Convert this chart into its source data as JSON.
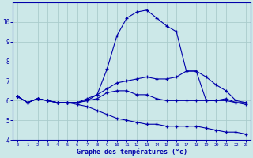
{
  "xlabel": "Graphe des températures (°c)",
  "background_color": "#cce8e8",
  "grid_color": "#aacccc",
  "line_color": "#0000aa",
  "hours": [
    0,
    1,
    2,
    3,
    4,
    5,
    6,
    7,
    8,
    9,
    10,
    11,
    12,
    13,
    14,
    15,
    16,
    17,
    18,
    19,
    20,
    21,
    22,
    23
  ],
  "temp": [
    6.2,
    5.9,
    6.1,
    6.0,
    5.9,
    5.9,
    5.9,
    6.0,
    6.3,
    7.6,
    9.3,
    10.2,
    10.5,
    10.6,
    10.2,
    9.8,
    9.5,
    7.5,
    7.5,
    6.0,
    6.0,
    6.1,
    5.9,
    5.8
  ],
  "dewpoint": [
    6.2,
    5.9,
    6.1,
    6.0,
    5.9,
    5.9,
    5.9,
    6.1,
    6.3,
    6.6,
    6.9,
    7.0,
    7.1,
    7.2,
    7.1,
    7.1,
    7.2,
    7.5,
    7.5,
    7.2,
    6.8,
    6.5,
    6.0,
    5.9
  ],
  "windchill": [
    6.2,
    5.9,
    6.1,
    6.0,
    5.9,
    5.9,
    5.9,
    6.0,
    6.1,
    6.4,
    6.5,
    6.5,
    6.3,
    6.3,
    6.1,
    6.0,
    6.0,
    6.0,
    6.0,
    6.0,
    6.0,
    6.0,
    5.9,
    5.9
  ],
  "humidex": [
    6.2,
    5.9,
    6.1,
    6.0,
    5.9,
    5.9,
    5.8,
    5.7,
    5.5,
    5.3,
    5.1,
    5.0,
    4.9,
    4.8,
    4.8,
    4.7,
    4.7,
    4.7,
    4.7,
    4.6,
    4.5,
    4.4,
    4.4,
    4.3
  ],
  "ylim_min": 4,
  "ylim_max": 11,
  "yticks": [
    4,
    5,
    6,
    7,
    8,
    9,
    10
  ]
}
